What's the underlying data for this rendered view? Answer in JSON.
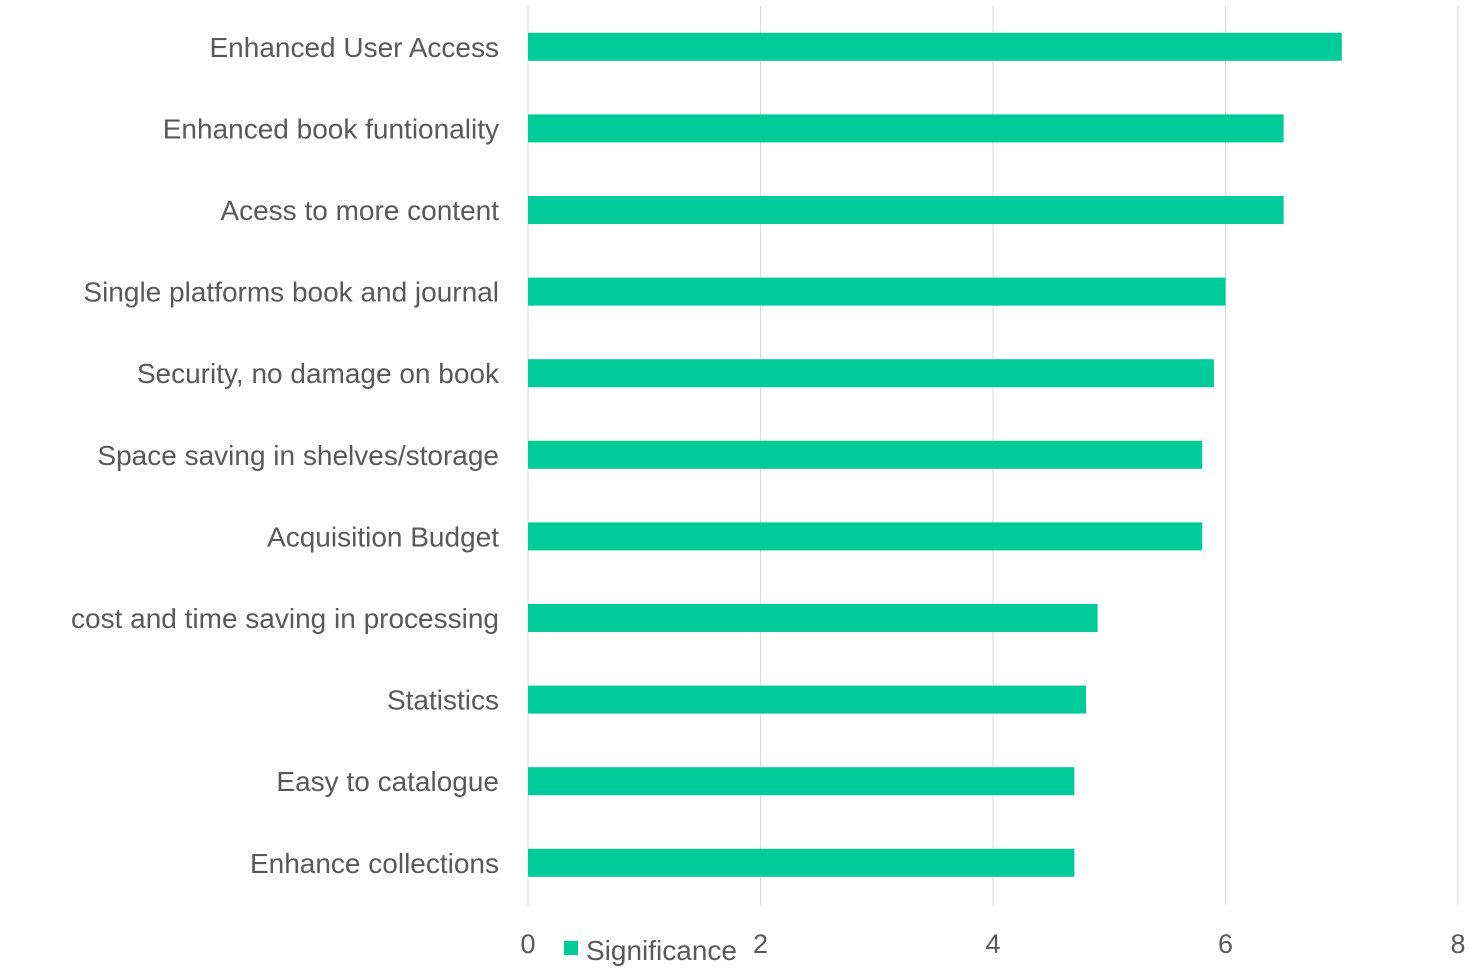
{
  "chart_data": {
    "type": "bar",
    "orientation": "horizontal",
    "title": "",
    "xlabel": "",
    "ylabel": "",
    "categories": [
      "Enhanced User Access",
      "Enhanced book funtionality",
      "Acess to more content",
      "Single platforms book and journal",
      "Security, no damage on book",
      "Space saving in shelves/storage",
      "Acquisition Budget",
      "cost and time saving in processing",
      "Statistics",
      "Easy to catalogue",
      "Enhance collections"
    ],
    "series": [
      {
        "name": "Significance",
        "color": "#00CC99",
        "values": [
          7.0,
          6.5,
          6.5,
          6.0,
          5.9,
          5.8,
          5.8,
          4.9,
          4.8,
          4.7,
          4.7
        ]
      }
    ],
    "xlim": [
      0,
      8
    ],
    "x_ticks": [
      "0",
      "2",
      "4",
      "6",
      "8"
    ],
    "grid": "vertical",
    "grid_color": "#D9D9D9",
    "label_color": "#595959",
    "legend_position": "bottom"
  }
}
